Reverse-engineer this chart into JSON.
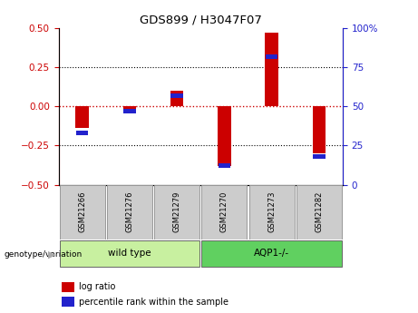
{
  "title": "GDS899 / H3047F07",
  "samples": [
    "GSM21266",
    "GSM21276",
    "GSM21279",
    "GSM21270",
    "GSM21273",
    "GSM21282"
  ],
  "log_ratios": [
    -0.14,
    -0.02,
    0.1,
    -0.38,
    0.47,
    -0.3
  ],
  "percentile_ranks": [
    33,
    47,
    57,
    12,
    82,
    18
  ],
  "groups": [
    {
      "label": "wild type",
      "samples": [
        0,
        1,
        2
      ],
      "color": "#c8f0a0"
    },
    {
      "label": "AQP1-/-",
      "samples": [
        3,
        4,
        5
      ],
      "color": "#60d060"
    }
  ],
  "ylim_left": [
    -0.5,
    0.5
  ],
  "ylim_right": [
    0,
    100
  ],
  "yticks_left": [
    -0.5,
    -0.25,
    0.0,
    0.25,
    0.5
  ],
  "yticks_right": [
    0,
    25,
    50,
    75,
    100
  ],
  "bar_color_red": "#cc0000",
  "bar_color_blue": "#2222cc",
  "zero_line_color": "#cc0000",
  "bg_color": "#ffffff",
  "sample_box_color": "#cccccc",
  "bar_width": 0.25
}
